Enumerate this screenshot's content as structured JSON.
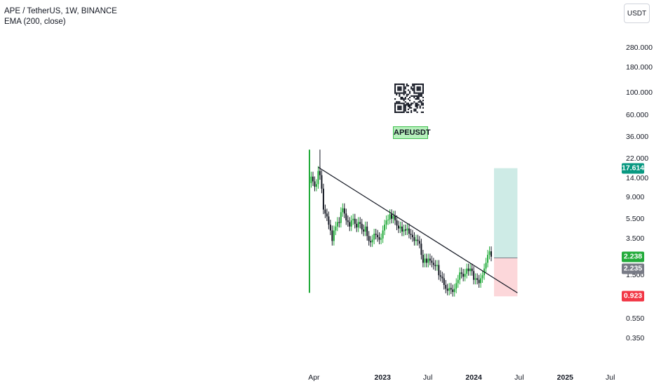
{
  "legend": {
    "title": "APE / TetherUS, 1W, BINANCE",
    "indicator": "EMA (200, close)"
  },
  "currency": "USDT",
  "symbol_tag": "APEUSDT",
  "badges": {
    "target": {
      "value": "17.614",
      "color": "#089981"
    },
    "current": {
      "value": "2.238",
      "color": "#22ab3a"
    },
    "entry": {
      "value": "2.235",
      "color": "#787b86"
    },
    "stop": {
      "value": "0.923",
      "color": "#f23645"
    }
  },
  "chart_data": {
    "type": "candlestick",
    "title": "APE / TetherUS, 1W, BINANCE",
    "yscale": "log",
    "y_ticks": [
      "280.000",
      "180.000",
      "100.000",
      "60.000",
      "36.000",
      "22.000",
      "14.000",
      "9.000",
      "5.500",
      "3.500",
      "1.500",
      "0.550",
      "0.350"
    ],
    "x_ticks": [
      "Apr",
      "2023",
      "Jul",
      "2024",
      "Jul",
      "2025",
      "Jul"
    ],
    "x_ticks_bold": [
      "2023",
      "2024",
      "2025"
    ],
    "close_path": [
      [
        "2022-03-14",
        12.5
      ],
      [
        "2022-03-21",
        14.5
      ],
      [
        "2022-03-28",
        13.0
      ],
      [
        "2022-04-04",
        11.5
      ],
      [
        "2022-04-11",
        12.2
      ],
      [
        "2022-04-18",
        16.5
      ],
      [
        "2022-04-25",
        15.0
      ],
      [
        "2022-05-02",
        11.0
      ],
      [
        "2022-05-09",
        6.8
      ],
      [
        "2022-05-16",
        6.2
      ],
      [
        "2022-05-23",
        5.8
      ],
      [
        "2022-05-30",
        4.8
      ],
      [
        "2022-06-06",
        4.2
      ],
      [
        "2022-06-13",
        3.3
      ],
      [
        "2022-06-20",
        4.2
      ],
      [
        "2022-06-27",
        4.6
      ],
      [
        "2022-07-04",
        5.1
      ],
      [
        "2022-07-11",
        5.0
      ],
      [
        "2022-07-18",
        6.4
      ],
      [
        "2022-07-25",
        7.0
      ],
      [
        "2022-08-01",
        6.2
      ],
      [
        "2022-08-08",
        5.3
      ],
      [
        "2022-08-15",
        5.1
      ],
      [
        "2022-08-22",
        4.6
      ],
      [
        "2022-08-29",
        5.3
      ],
      [
        "2022-09-05",
        5.5
      ],
      [
        "2022-09-12",
        4.9
      ],
      [
        "2022-09-19",
        4.5
      ],
      [
        "2022-09-26",
        5.1
      ],
      [
        "2022-10-03",
        4.9
      ],
      [
        "2022-10-10",
        4.3
      ],
      [
        "2022-10-17",
        4.1
      ],
      [
        "2022-10-24",
        4.6
      ],
      [
        "2022-10-31",
        3.7
      ],
      [
        "2022-11-07",
        3.3
      ],
      [
        "2022-11-14",
        3.2
      ],
      [
        "2022-11-21",
        3.4
      ],
      [
        "2022-11-28",
        3.9
      ],
      [
        "2022-12-05",
        3.8
      ],
      [
        "2022-12-12",
        3.6
      ],
      [
        "2022-12-19",
        3.4
      ],
      [
        "2022-12-26",
        3.5
      ],
      [
        "2023-01-02",
        4.2
      ],
      [
        "2023-01-09",
        4.8
      ],
      [
        "2023-01-16",
        5.3
      ],
      [
        "2023-01-23",
        5.4
      ],
      [
        "2023-01-30",
        6.1
      ],
      [
        "2023-02-06",
        5.5
      ],
      [
        "2023-02-13",
        5.9
      ],
      [
        "2023-02-20",
        5.3
      ],
      [
        "2023-02-27",
        4.7
      ],
      [
        "2023-03-06",
        4.4
      ],
      [
        "2023-03-13",
        4.6
      ],
      [
        "2023-03-20",
        4.1
      ],
      [
        "2023-03-27",
        4.3
      ],
      [
        "2023-04-03",
        4.2
      ],
      [
        "2023-04-10",
        4.4
      ],
      [
        "2023-04-17",
        3.9
      ],
      [
        "2023-04-24",
        3.8
      ],
      [
        "2023-05-01",
        3.6
      ],
      [
        "2023-05-08",
        3.3
      ],
      [
        "2023-05-15",
        3.4
      ],
      [
        "2023-05-22",
        3.3
      ],
      [
        "2023-05-29",
        3.1
      ],
      [
        "2023-06-05",
        2.4
      ],
      [
        "2023-06-12",
        2.0
      ],
      [
        "2023-06-19",
        2.2
      ],
      [
        "2023-06-26",
        2.0
      ],
      [
        "2023-07-03",
        2.2
      ],
      [
        "2023-07-10",
        2.1
      ],
      [
        "2023-07-17",
        2.0
      ],
      [
        "2023-07-24",
        1.9
      ],
      [
        "2023-07-31",
        1.85
      ],
      [
        "2023-08-07",
        1.9
      ],
      [
        "2023-08-14",
        1.5
      ],
      [
        "2023-08-21",
        1.45
      ],
      [
        "2023-08-28",
        1.4
      ],
      [
        "2023-09-04",
        1.2
      ],
      [
        "2023-09-11",
        1.1
      ],
      [
        "2023-09-18",
        1.05
      ],
      [
        "2023-09-25",
        1.12
      ],
      [
        "2023-10-02",
        1.08
      ],
      [
        "2023-10-09",
        1.02
      ],
      [
        "2023-10-16",
        1.1
      ],
      [
        "2023-10-23",
        1.25
      ],
      [
        "2023-10-30",
        1.35
      ],
      [
        "2023-11-06",
        1.6
      ],
      [
        "2023-11-13",
        1.55
      ],
      [
        "2023-11-20",
        1.45
      ],
      [
        "2023-11-27",
        1.55
      ],
      [
        "2023-12-04",
        1.75
      ],
      [
        "2023-12-11",
        1.65
      ],
      [
        "2023-12-18",
        1.75
      ],
      [
        "2023-12-25",
        1.65
      ],
      [
        "2024-01-01",
        1.35
      ],
      [
        "2024-01-08",
        1.4
      ],
      [
        "2024-01-15",
        1.35
      ],
      [
        "2024-01-22",
        1.25
      ],
      [
        "2024-01-29",
        1.4
      ],
      [
        "2024-02-05",
        1.5
      ],
      [
        "2024-02-12",
        1.75
      ],
      [
        "2024-02-19",
        2.0
      ],
      [
        "2024-02-26",
        2.4
      ],
      [
        "2024-03-04",
        2.6
      ],
      [
        "2024-03-11",
        2.3
      ]
    ],
    "ath_wick": {
      "date": "2022-04-25",
      "high": 27.0
    },
    "first_candle": {
      "date": "2022-03-14",
      "high": 27.0,
      "low": 1.0
    },
    "trendline": {
      "from": [
        "2022-04-18",
        18.0
      ],
      "to": [
        "2024-06-24",
        1.0
      ]
    },
    "position": {
      "entry": 2.235,
      "target": 17.614,
      "stop": 0.923,
      "from": "2024-03-11",
      "to": "2024-06-24"
    }
  }
}
